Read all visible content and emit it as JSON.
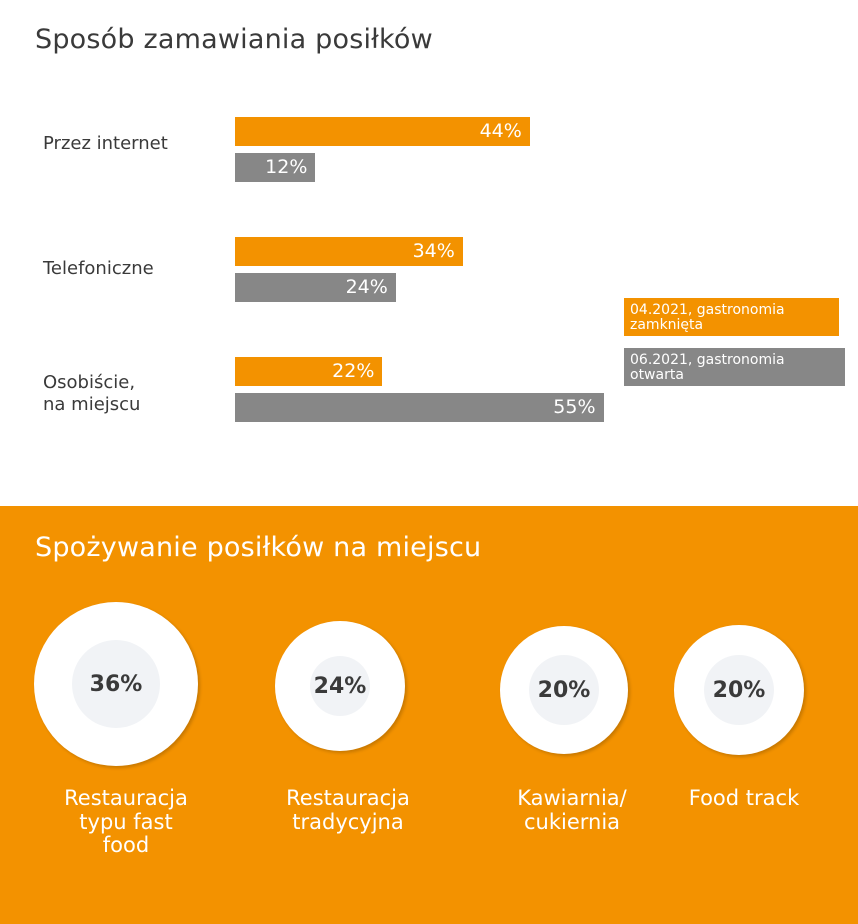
{
  "chart_data": [
    {
      "type": "bar",
      "title": "Sposób zamawiania posiłków",
      "categories": [
        "Przez internet",
        "Telefoniczne",
        "Osobiście,\nna miejscu"
      ],
      "series": [
        {
          "name": "04.2021, gastronomia zamknięta",
          "values": [
            44,
            34,
            22
          ],
          "labels": [
            "44%",
            "34%",
            "22%"
          ],
          "color": "#f39200"
        },
        {
          "name": "06.2021, gastronomia otwarta",
          "values": [
            12,
            24,
            55
          ],
          "labels": [
            "12%",
            "24%",
            "55%"
          ],
          "color": "#878787"
        }
      ],
      "xlim": [
        0,
        100
      ],
      "legend_position": "right"
    },
    {
      "type": "bubble",
      "title": "Spożywanie posiłków na miejscu",
      "categories": [
        "Restauracja\ntypu fast\nfood",
        "Restauracja\ntradycyjna",
        "Kawiarnia/\ncukiernia",
        "Food track"
      ],
      "values": [
        36,
        24,
        20,
        20
      ],
      "labels": [
        "36%",
        "24%",
        "20%",
        "20%"
      ]
    }
  ],
  "colors": {
    "orange": "#f39200",
    "gray": "#878787",
    "text": "#3a3a3a"
  }
}
